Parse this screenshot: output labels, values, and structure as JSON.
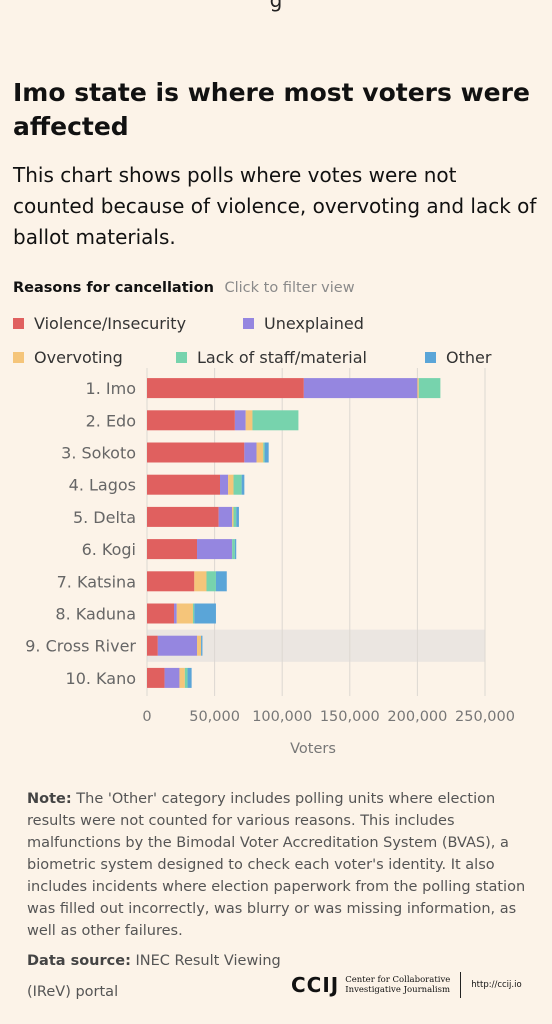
{
  "top_clipped_text": "g",
  "title": "Imo state is where most voters were affected",
  "subtitle": "This chart shows polls where votes were not counted because of violence, overvoting and lack of ballot materials.",
  "filter": {
    "label": "Reasons for cancellation",
    "hint": "Click to filter view"
  },
  "colors": {
    "Violence/Insecurity": "#e0605f",
    "Unexplained": "#9586e0",
    "Overvoting": "#f5c57a",
    "Lack of staff/material": "#77d3ad",
    "Other": "#5aa5d8"
  },
  "chart_data": {
    "type": "bar",
    "orientation": "horizontal",
    "stacked": true,
    "categories": [
      "1. Imo",
      "2. Edo",
      "3. Sokoto",
      "4. Lagos",
      "5. Delta",
      "6. Kogi",
      "7. Katsina",
      "8. Kaduna",
      "9. Cross River",
      "10. Kano"
    ],
    "series": [
      {
        "name": "Violence/Insecurity",
        "values": [
          116000,
          65000,
          72000,
          54000,
          53000,
          37000,
          35000,
          20000,
          8000,
          13000
        ]
      },
      {
        "name": "Unexplained",
        "values": [
          84000,
          8000,
          9000,
          6000,
          10000,
          26000,
          0,
          2000,
          29000,
          11000
        ]
      },
      {
        "name": "Overvoting",
        "values": [
          1000,
          5000,
          5000,
          4000,
          1000,
          0,
          9000,
          12000,
          3000,
          4000
        ]
      },
      {
        "name": "Lack of staff/material",
        "values": [
          16000,
          34000,
          1000,
          6000,
          2000,
          2000,
          7000,
          1000,
          0,
          2000
        ]
      },
      {
        "name": "Other",
        "values": [
          0,
          0,
          3000,
          2000,
          2000,
          1000,
          8000,
          16000,
          1000,
          3000
        ]
      }
    ],
    "xlabel": "Voters",
    "ylabel": "",
    "xlim": [
      0,
      250000
    ],
    "xticks": [
      "0",
      "50,000",
      "100,000",
      "150,000",
      "200,000",
      "250,000"
    ],
    "xtick_values": [
      0,
      50000,
      100000,
      150000,
      200000,
      250000
    ],
    "grid": "vertical",
    "legend": "top",
    "highlighted_category": "9. Cross River"
  },
  "note": {
    "label": "Note:",
    "text": " The 'Other' category includes polling units where election results were not counted for various reasons. This includes malfunctions by the Bimodal Voter Accreditation System (BVAS), a biometric system designed to check each voter's identity. It also includes incidents where election paperwork from the polling station was filled out incorrectly, was blurry or was missing information, as well as other failures."
  },
  "source": {
    "label": "Data source:",
    "text": " INEC Result Viewing (IReV) portal"
  },
  "logo": {
    "mark": "CCIJ",
    "line1": "Center for Collaborative",
    "line2": "Investigative Journalism",
    "url": "http://ccij.io"
  }
}
